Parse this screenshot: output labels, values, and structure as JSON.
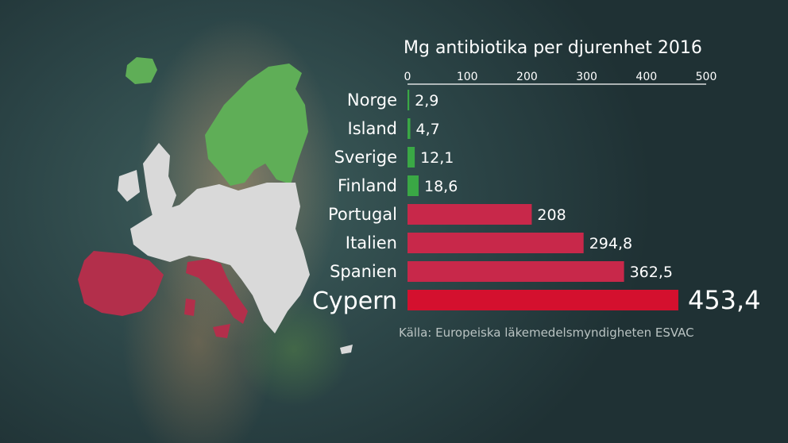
{
  "source": "Källa: Europeiska läkemedelsmyndigheten ESVAC",
  "colors": {
    "low": "#3aa845",
    "high": "#c8284a",
    "highlight": "#d4102e",
    "map_gray": "#d9d9d9",
    "map_green": "#5fae57",
    "map_red": "#b32f4b"
  },
  "chart_data": {
    "type": "bar",
    "orientation": "horizontal",
    "title": "Mg antibiotika per djurenhet 2016",
    "xlim": [
      0,
      500
    ],
    "ticks": [
      "0",
      "100",
      "200",
      "300",
      "400",
      "500"
    ],
    "categories": [
      "Norge",
      "Island",
      "Sverige",
      "Finland",
      "Portugal",
      "Italien",
      "Spanien",
      "Cypern"
    ],
    "values": [
      2.9,
      4.7,
      12.1,
      18.6,
      208,
      294.8,
      362.5,
      453.4
    ],
    "value_labels": [
      "2,9",
      "4,7",
      "12,1",
      "18,6",
      "208",
      "294,8",
      "362,5",
      "453,4"
    ],
    "bar_colors": [
      "#3aa845",
      "#3aa845",
      "#3aa845",
      "#3aa845",
      "#c8284a",
      "#c8284a",
      "#c8284a",
      "#d4102e"
    ],
    "highlighted": "Cypern",
    "grid": false
  }
}
